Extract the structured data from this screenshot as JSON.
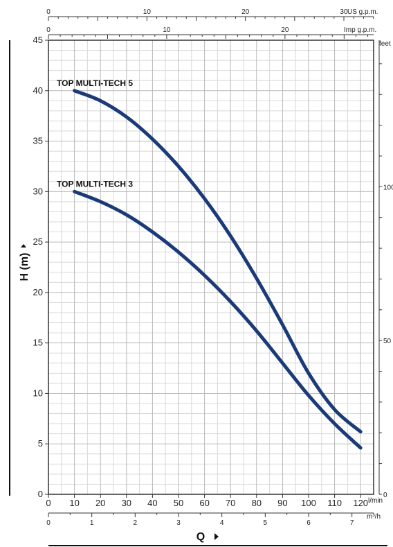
{
  "chart_data": {
    "type": "line",
    "x_axis": {
      "unit": "l/min",
      "range": [
        0,
        125
      ],
      "ticks": [
        0,
        10,
        20,
        30,
        40,
        50,
        60,
        70,
        80,
        90,
        100,
        110,
        120
      ]
    },
    "x_axis_m3h": {
      "unit": "m³/h",
      "ticks": [
        0,
        1,
        2,
        3,
        4,
        5,
        6,
        7
      ]
    },
    "x_axis_us_gpm": {
      "unit": "US g.p.m.",
      "ticks": [
        0,
        10,
        20,
        30
      ]
    },
    "x_axis_imp_gpm": {
      "unit": "Imp g.p.m.",
      "ticks": [
        0,
        10,
        20
      ]
    },
    "y_axis": {
      "label": "H (m)",
      "range": [
        0,
        45
      ],
      "ticks": [
        0,
        5,
        10,
        15,
        20,
        25,
        30,
        35,
        40,
        45
      ]
    },
    "y_axis_feet": {
      "unit": "feet",
      "ticks": [
        0,
        50,
        100
      ]
    },
    "x_label": "Q",
    "grid": true,
    "series": [
      {
        "name": "TOP MULTI-TECH 5",
        "color": "#1b3a78",
        "x": [
          10,
          20,
          30,
          40,
          50,
          60,
          70,
          80,
          90,
          100,
          110,
          120
        ],
        "y": [
          40,
          39,
          37.4,
          35.2,
          32.5,
          29.3,
          25.6,
          21.4,
          16.8,
          12,
          8.4,
          6.2
        ]
      },
      {
        "name": "TOP MULTI-TECH 3",
        "color": "#1b3a78",
        "x": [
          10,
          20,
          30,
          40,
          50,
          60,
          70,
          80,
          90,
          100,
          110,
          120
        ],
        "y": [
          30,
          29,
          27.7,
          26,
          24,
          21.7,
          19.1,
          16.2,
          13,
          9.8,
          7,
          4.6
        ]
      }
    ]
  }
}
